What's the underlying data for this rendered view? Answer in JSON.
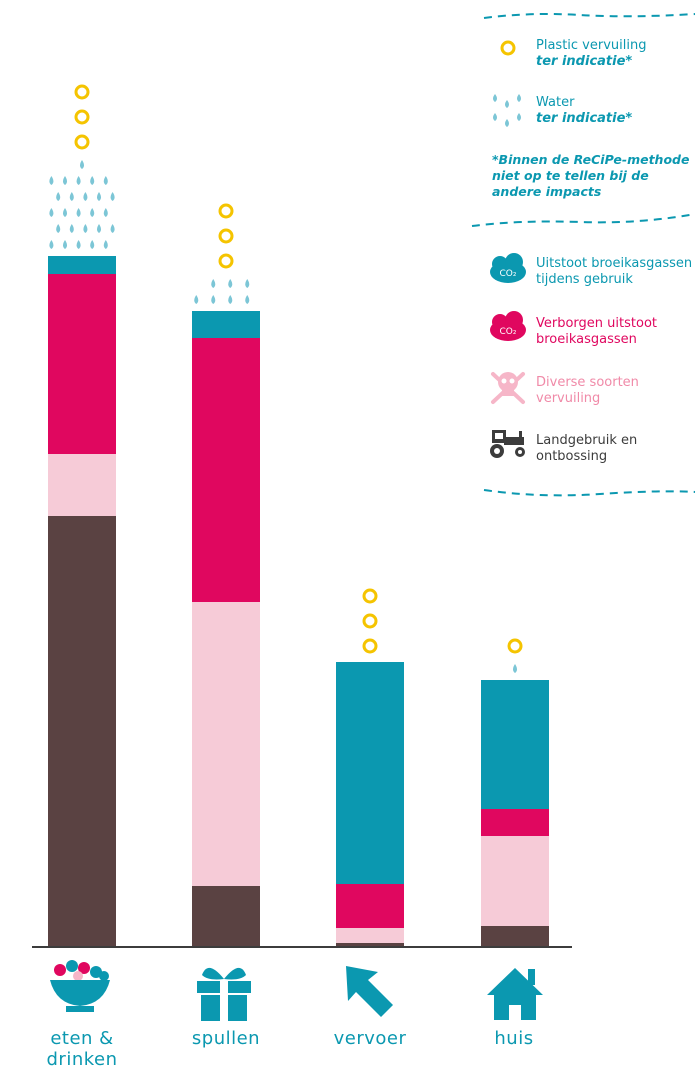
{
  "legend": {
    "plastic": {
      "label": "Plastic vervuiling",
      "sub": "ter indicatie*"
    },
    "water": {
      "label": "Water",
      "sub": "ter indicatie*"
    },
    "note": "*Binnen de ReCiPe-methode niet op te tellen bij de andere impacts",
    "co2_use": {
      "label": "Uitstoot broeikasgassen tijdens gebruik"
    },
    "co2_hidden": {
      "label": "Verborgen uitstoot broeikasgassen"
    },
    "pollution": {
      "label": "Diverse soorten vervuiling"
    },
    "land": {
      "label": "Landgebruik en ontbossing"
    }
  },
  "colors": {
    "land": "#5a4242",
    "pollution": "#f6cbd7",
    "hidden": "#e0075f",
    "use": "#0b98b0",
    "plastic": "#f5c400",
    "water": "#7cc6d6",
    "label": "#0b98b0"
  },
  "chart_data": {
    "type": "bar",
    "stacked": true,
    "categories": [
      "eten & drinken",
      "spullen",
      "vervoer",
      "huis"
    ],
    "series": [
      {
        "name": "Landgebruik en ontbossing",
        "values": [
          430,
          60,
          3,
          20
        ]
      },
      {
        "name": "Diverse soorten vervuiling",
        "values": [
          62,
          284,
          15,
          90
        ]
      },
      {
        "name": "Verborgen uitstoot broeikasgassen",
        "values": [
          180,
          264,
          44,
          27
        ]
      },
      {
        "name": "Uitstoot broeikasgassen tijdens gebruik",
        "values": [
          18,
          27,
          222,
          129
        ]
      }
    ],
    "indicators": {
      "plastic_rings": [
        3,
        3,
        3,
        1
      ],
      "water_drops": [
        26,
        7,
        0,
        1
      ]
    },
    "ylim": [
      0,
      950
    ]
  }
}
